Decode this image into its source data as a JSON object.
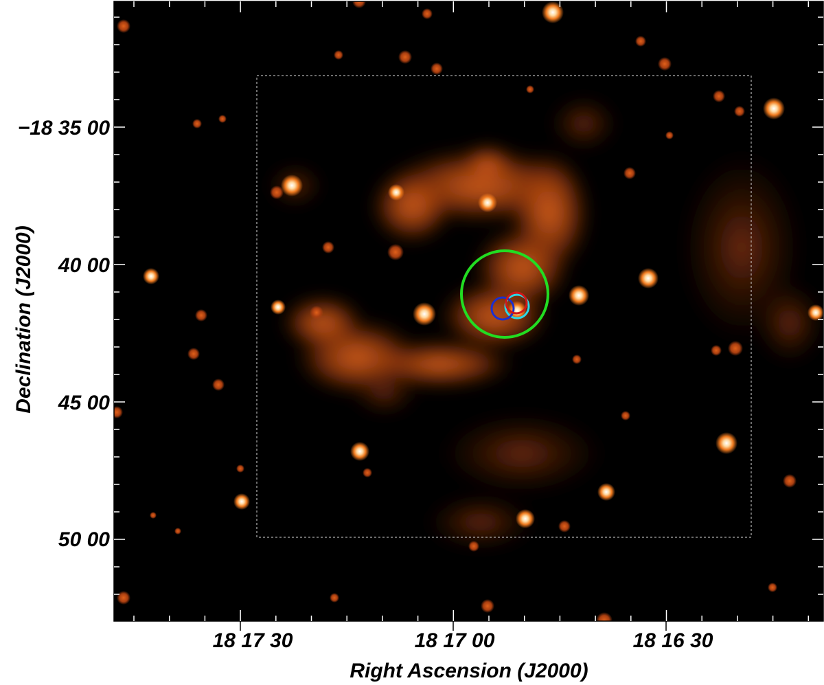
{
  "figure": {
    "x_axis_label": "Right Ascension (J2000)",
    "y_axis_label": "Declination (J2000)",
    "x_tick_labels": [
      "18 17 30",
      "18 17 00",
      "18 16 30"
    ],
    "y_tick_labels": [
      "−18 35 00",
      "40 00",
      "45 00",
      "50 00"
    ],
    "colormap": {
      "background": "#000000",
      "mid": "#b8480a",
      "bright": "#ff8a2a",
      "peak": "#ffffff"
    },
    "overlays": [
      {
        "name": "large region",
        "color": "#22dd22"
      },
      {
        "name": "blue region",
        "color": "#1a2fd0"
      },
      {
        "name": "cyan region",
        "color": "#2ad8e8"
      },
      {
        "name": "red region",
        "color": "#d01818"
      }
    ],
    "dashed_box": {
      "color": "#d8d8d8"
    }
  }
}
